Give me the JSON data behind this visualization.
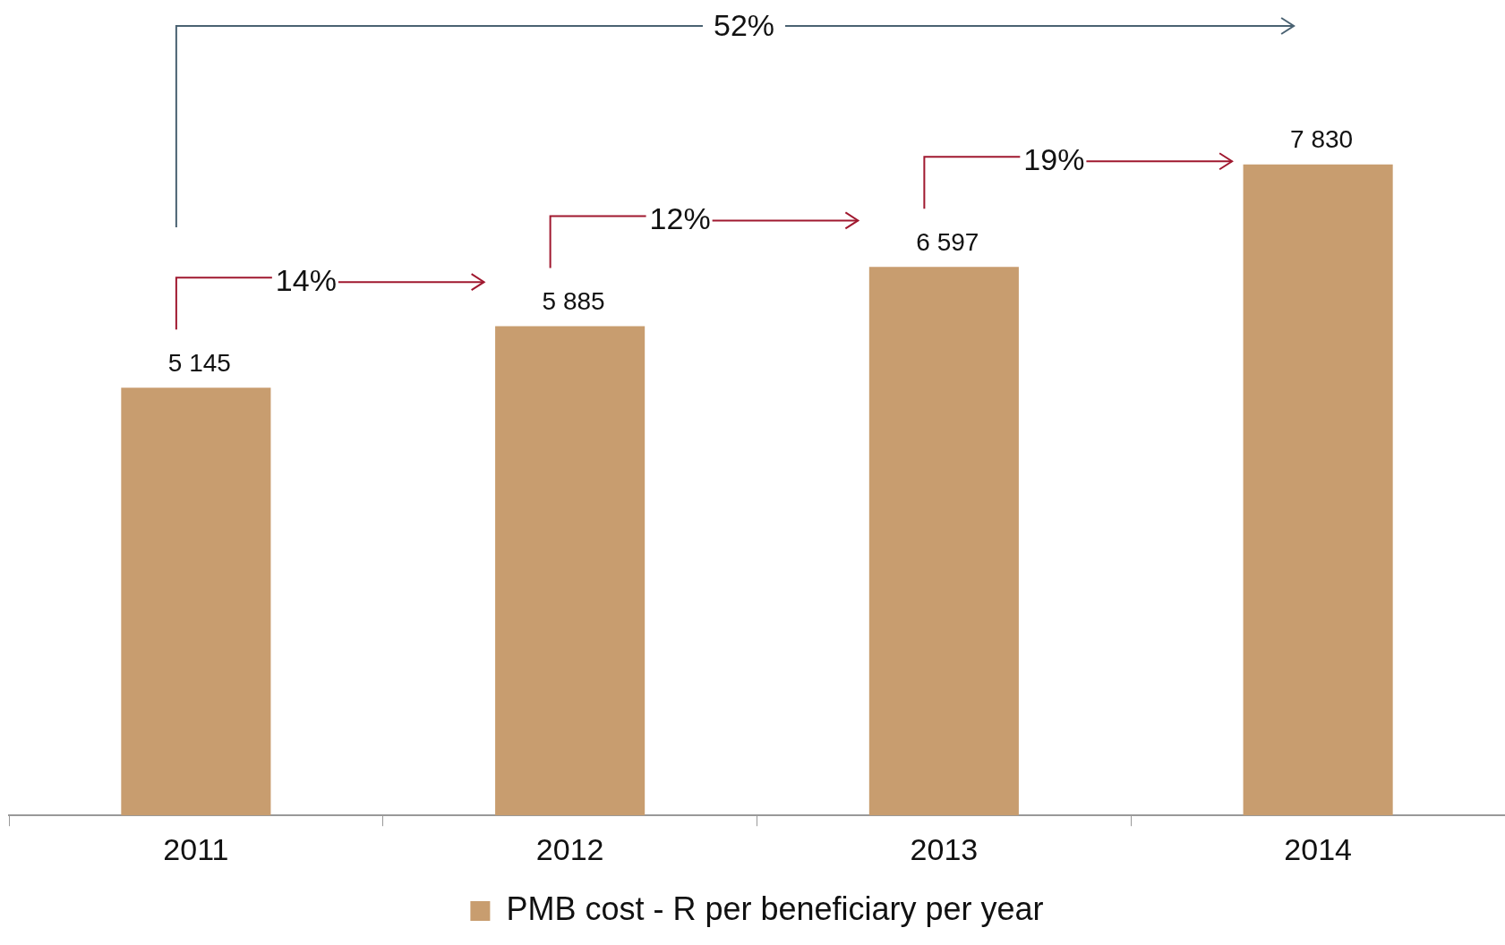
{
  "chart_data": {
    "type": "bar",
    "categories": [
      "2011",
      "2012",
      "2013",
      "2014"
    ],
    "series": [
      {
        "name": "PMB cost - R per beneficiary per year",
        "color": "#c89d6f",
        "values": [
          5145,
          5885,
          6597,
          7830
        ],
        "value_labels": [
          "5 145",
          "5 885",
          "6 597",
          "7 830"
        ]
      }
    ],
    "annotations": [
      "14%",
      "12%",
      "19%",
      "52%"
    ],
    "legend": "bottom",
    "grid": false
  }
}
